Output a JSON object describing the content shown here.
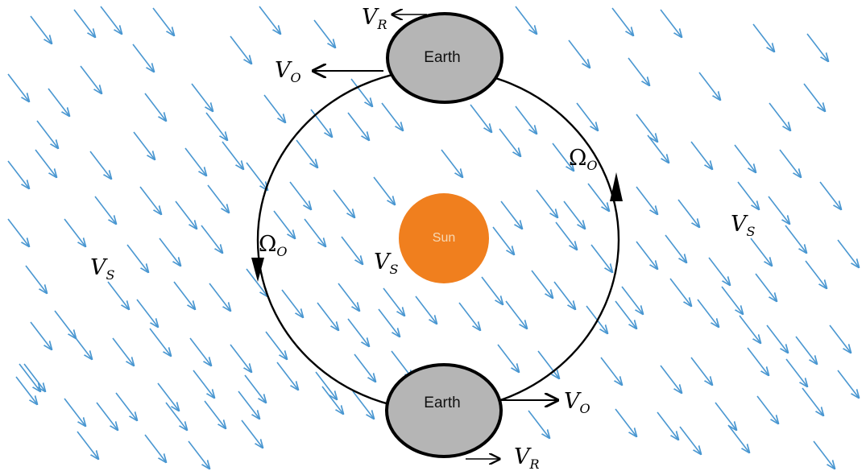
{
  "colors": {
    "wind_arrow": "#4a97d1",
    "earth_fill": "#b5b5b5",
    "earth_stroke": "#000000",
    "sun_fill": "#f07f1e",
    "orbit_stroke": "#000000"
  },
  "bodies": {
    "earth_top": "Earth",
    "earth_bottom": "Earth",
    "sun": "Sun"
  },
  "labels": {
    "vr_top": {
      "main": "V",
      "sub": "R"
    },
    "vo_left": {
      "main": "V",
      "sub": "O"
    },
    "omega_right": {
      "main": "Ω",
      "sub": "O"
    },
    "vs_right": {
      "main": "V",
      "sub": "S"
    },
    "omega_left": {
      "main": "Ω",
      "sub": "O"
    },
    "vs_left": {
      "main": "V",
      "sub": "S"
    },
    "vs_center": {
      "main": "V",
      "sub": "S"
    },
    "vo_right": {
      "main": "V",
      "sub": "O"
    },
    "vr_bottom": {
      "main": "V",
      "sub": "R"
    }
  },
  "icons": {
    "wind": "diagonal-arrow-icon",
    "orbit_direction": "arrowhead-icon"
  }
}
